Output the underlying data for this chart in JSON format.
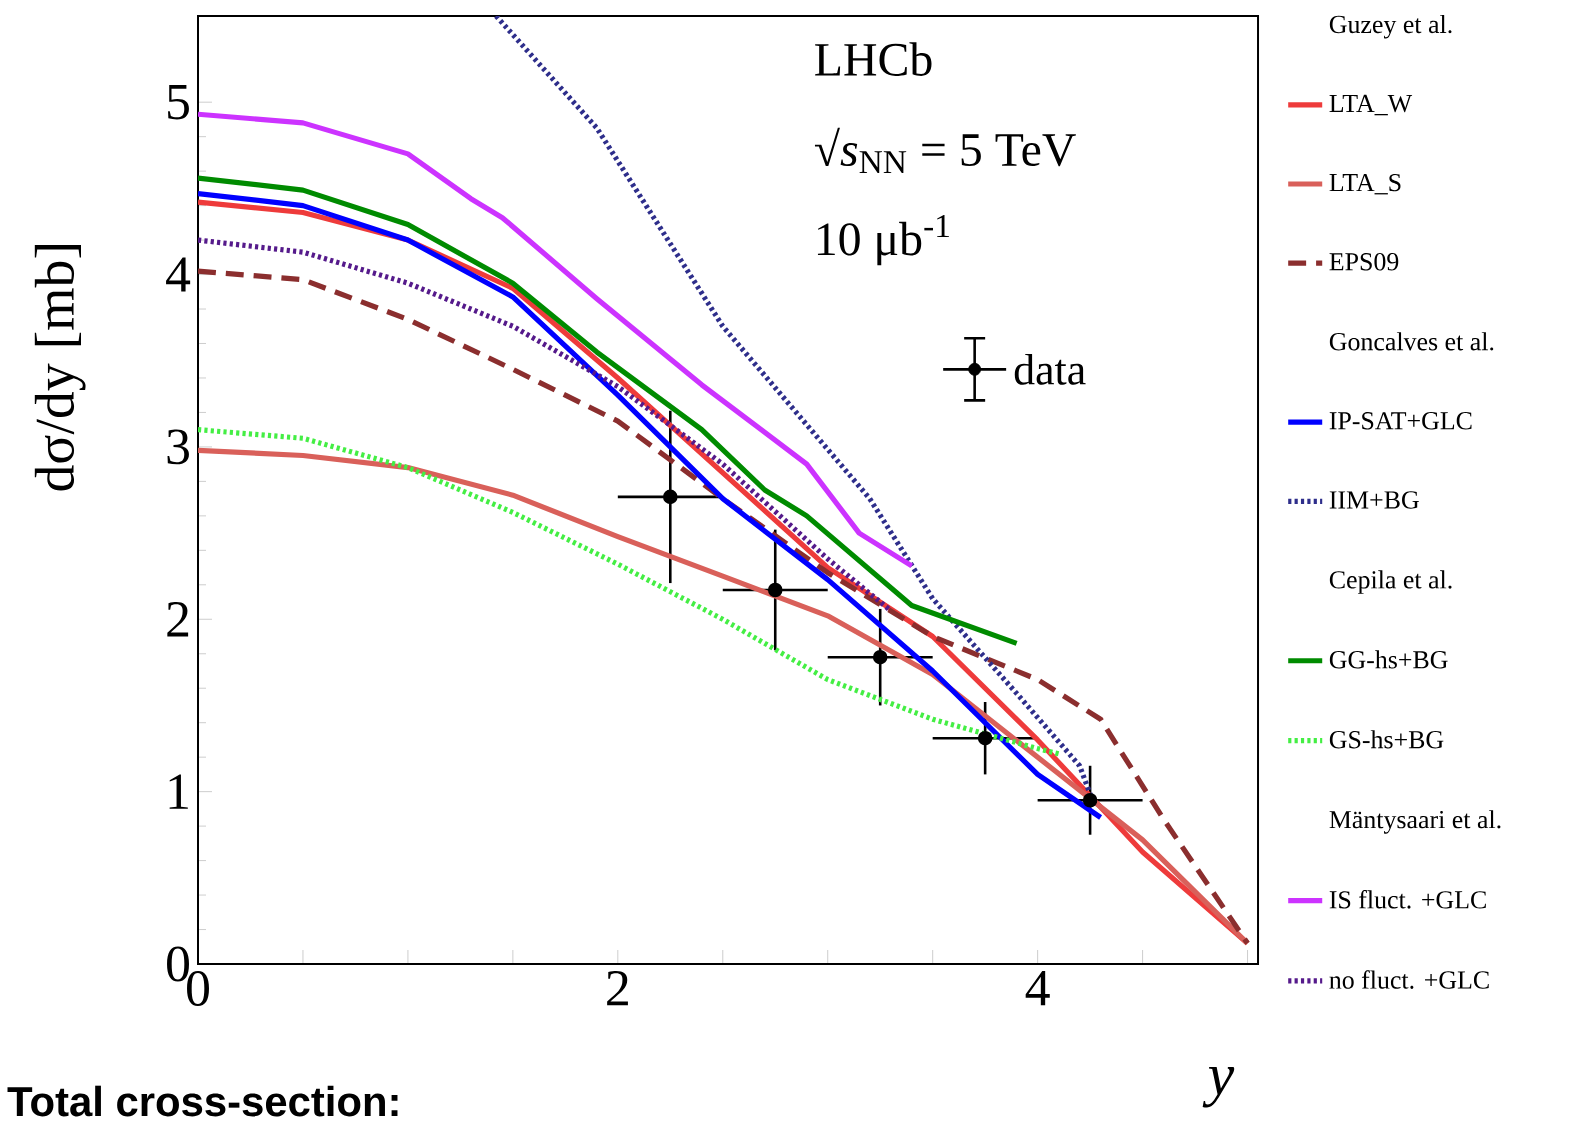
{
  "chart_data": {
    "type": "line",
    "ylabel": "dσ/dy [mb]",
    "xlabel": "y",
    "xlim": [
      0,
      5.05
    ],
    "ylim": [
      0,
      5.5
    ],
    "xticks": [
      0,
      {
        "value": 0.5,
        "label": null
      },
      {
        "value": 1,
        "label": null
      },
      {
        "value": 1.5,
        "label": null
      },
      2,
      {
        "value": 2.5,
        "label": null
      },
      {
        "value": 3,
        "label": null
      },
      {
        "value": 3.5,
        "label": null
      },
      4,
      {
        "value": 4.5,
        "label": null
      },
      {
        "value": 5,
        "label": null
      }
    ],
    "yticks": [
      0,
      1,
      2,
      3,
      4,
      5
    ],
    "legend": "right",
    "annotations": [
      "LHCb",
      "√*s*$_{NN}$ = 5 TeV",
      "10 μb$^{-1}$",
      "Guzey et al.",
      "Goncalves et al.",
      "Cepila et al.",
      "Mäntysaari et al.",
      "Total cross-section:"
    ],
    "series": [
      {
        "name": "data",
        "type": "scatter",
        "marker": "circle",
        "color": "#000000",
        "x": [
          2.25,
          2.75,
          3.25,
          3.75,
          4.25
        ],
        "values": [
          2.71,
          2.17,
          1.78,
          1.31,
          0.95
        ],
        "errors": [
          0.5,
          0.35,
          0.28,
          0.21,
          0.2
        ],
        "xerrors": [
          0.25,
          0.25,
          0.25,
          0.25,
          0.25
        ]
      },
      {
        "name": "LTA_W",
        "color": "#ee3b3b",
        "line_style": "solid",
        "x": [
          0,
          0.5,
          1,
          1.5,
          2,
          2.5,
          3,
          3.5,
          4,
          4.5,
          5
        ],
        "values": [
          4.42,
          4.36,
          4.2,
          3.92,
          3.4,
          2.85,
          2.3,
          1.9,
          1.3,
          0.65,
          0.12
        ]
      },
      {
        "name": "LTA_S",
        "color": "#d9605a",
        "line_style": "solid",
        "x": [
          0,
          0.5,
          1,
          1.5,
          2,
          2.5,
          3,
          3.5,
          4,
          4.5,
          5
        ],
        "values": [
          2.98,
          2.95,
          2.88,
          2.72,
          2.48,
          2.25,
          2.02,
          1.68,
          1.2,
          0.72,
          0.12
        ]
      },
      {
        "name": "EPS09",
        "color": "#8b2e2e",
        "line_style": "dashed",
        "x": [
          0,
          0.5,
          1,
          1.5,
          2,
          2.5,
          3,
          3.5,
          4,
          4.3,
          4.6,
          5
        ],
        "values": [
          4.02,
          3.97,
          3.74,
          3.45,
          3.15,
          2.7,
          2.27,
          1.9,
          1.65,
          1.42,
          0.84,
          0.12
        ]
      },
      {
        "name": "IP-SAT+GLC",
        "color": "#0000ff",
        "line_style": "solid",
        "x": [
          0,
          0.5,
          1,
          1.5,
          2,
          2.5,
          3,
          3.5,
          4,
          4.3
        ],
        "values": [
          4.47,
          4.4,
          4.2,
          3.87,
          3.3,
          2.7,
          2.23,
          1.7,
          1.1,
          0.85
        ]
      },
      {
        "name": "IIM+BG",
        "color": "#2e2e8b",
        "line_style": "dotted",
        "x": [
          1.42,
          1.9,
          2.5,
          3.2,
          3.5,
          3.9,
          4.2,
          4.27
        ],
        "values": [
          5.5,
          4.85,
          3.7,
          2.7,
          2.12,
          1.57,
          1.15,
          0.92
        ]
      },
      {
        "name": "GG-hs+BG",
        "color": "#008b00",
        "line_style": "solid",
        "x": [
          0,
          0.5,
          1,
          1.5,
          1.9,
          2.4,
          2.7,
          2.9,
          3.4,
          3.9
        ],
        "values": [
          4.56,
          4.49,
          4.29,
          3.95,
          3.55,
          3.1,
          2.75,
          2.6,
          2.08,
          1.86
        ]
      },
      {
        "name": "GS-hs+BG",
        "color": "#44ee44",
        "line_style": "dotted",
        "x": [
          0,
          0.5,
          1,
          1.5,
          2,
          2.5,
          3,
          3.5,
          4,
          4.1
        ],
        "values": [
          3.1,
          3.05,
          2.88,
          2.62,
          2.32,
          2.0,
          1.65,
          1.42,
          1.25,
          1.22
        ]
      },
      {
        "name": "IS fluct. +GLC",
        "color": "#cc33ff",
        "line_style": "solid",
        "x": [
          0,
          0.5,
          1,
          1.3,
          1.45,
          1.9,
          2.4,
          2.9,
          3.15,
          3.4
        ],
        "values": [
          4.93,
          4.88,
          4.7,
          4.44,
          4.33,
          3.86,
          3.36,
          2.9,
          2.5,
          2.31
        ]
      },
      {
        "name": "no fluct. +GLC",
        "color": "#551a8b",
        "line_style": "dotted",
        "x": [
          0,
          0.5,
          1,
          1.5,
          2,
          2.5,
          3,
          3.3
        ],
        "values": [
          4.2,
          4.13,
          3.95,
          3.7,
          3.35,
          2.9,
          2.35,
          2.05
        ]
      }
    ]
  }
}
